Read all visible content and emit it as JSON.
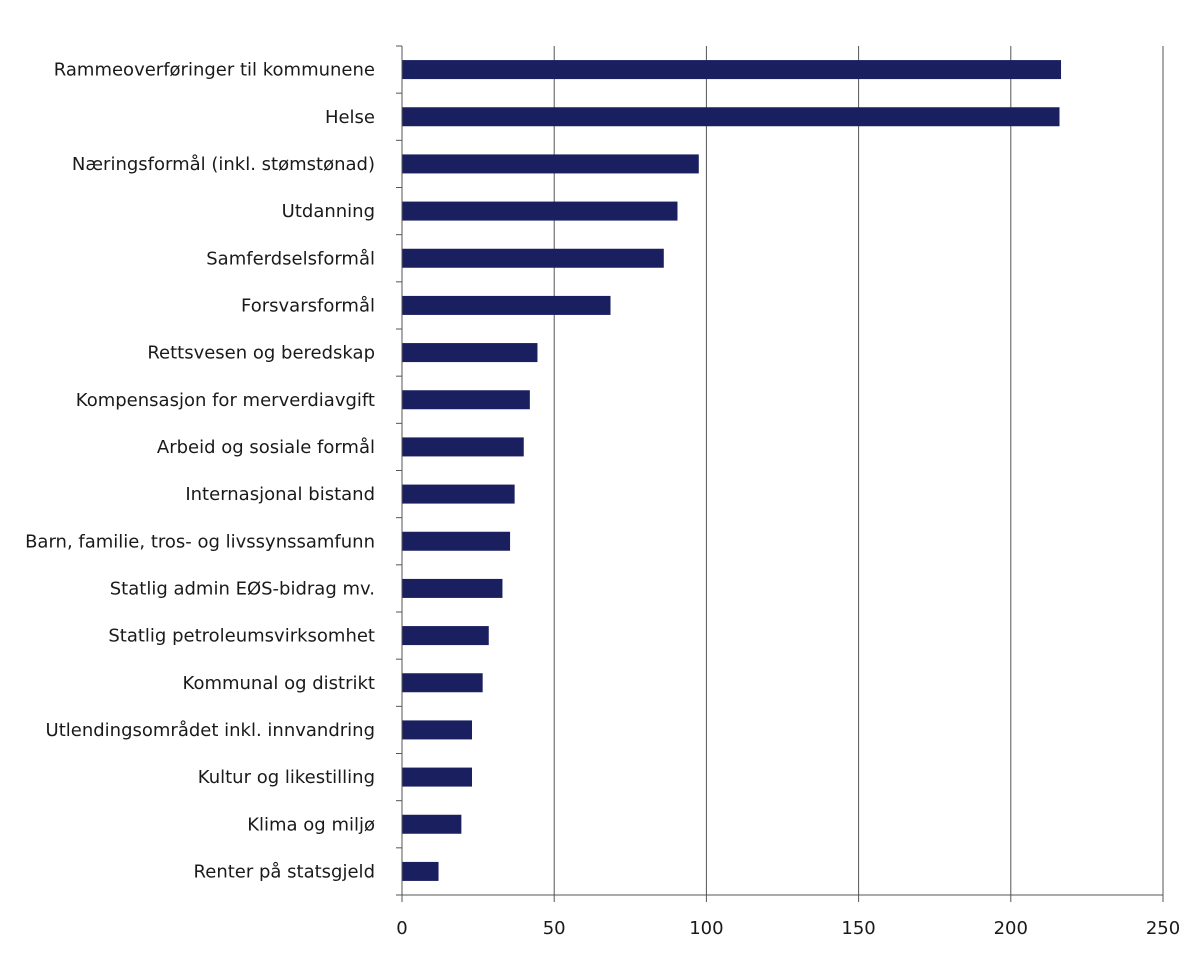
{
  "chart_data": {
    "type": "bar",
    "orientation": "horizontal",
    "title": "",
    "xlabel": "",
    "ylabel": "",
    "xlim": [
      0,
      250
    ],
    "xticks": [
      0,
      50,
      100,
      150,
      200,
      250
    ],
    "grid": true,
    "bar_color": "#1a1f60",
    "categories": [
      "Rammeoverføringer til kommunene",
      "Helse",
      "Næringsformål (inkl. stømstønad)",
      "Utdanning",
      "Samferdselsformål",
      "Forsvarsformål",
      "Rettsvesen og beredskap",
      "Kompensasjon for merverdiavgift",
      "Arbeid og sosiale formål",
      "Internasjonal bistand",
      "Barn, familie, tros- og livssynssamfunn",
      "Statlig admin EØS-bidrag mv.",
      "Statlig petroleumsvirksomhet",
      "Kommunal og distrikt",
      "Utlendingsområdet inkl. innvandring",
      "Kultur og likestilling",
      "Klima og miljø",
      "Renter på statsgjeld"
    ],
    "values": [
      216.5,
      216,
      97.5,
      90.5,
      86,
      68.5,
      44.5,
      42,
      40,
      37,
      35.5,
      33,
      28.5,
      26.5,
      23,
      23,
      19.5,
      12
    ]
  }
}
